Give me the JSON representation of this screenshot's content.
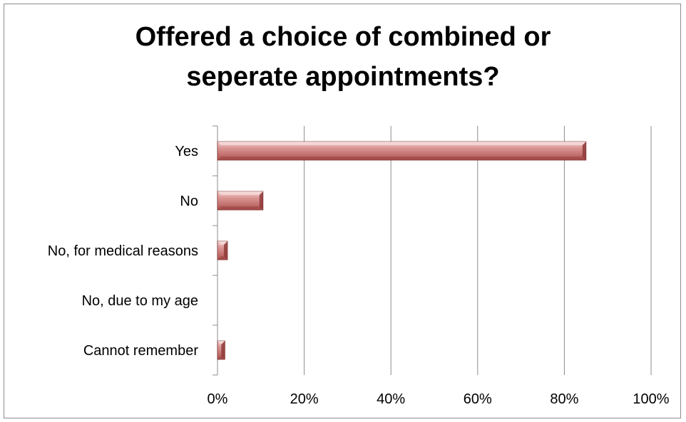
{
  "chart_data": {
    "type": "bar",
    "orientation": "horizontal",
    "title_lines": [
      "Offered a choice of combined or",
      "seperate appointments?"
    ],
    "categories": [
      "Yes",
      "No",
      "No, for medical reasons",
      "No, due to my age",
      "Cannot remember"
    ],
    "values": [
      0.85,
      0.105,
      0.023,
      0,
      0.017
    ],
    "xlim": [
      0,
      1
    ],
    "xticks": [
      0,
      0.2,
      0.4,
      0.6,
      0.8,
      1.0
    ],
    "xtick_labels": [
      "0%",
      "20%",
      "40%",
      "60%",
      "80%",
      "100%"
    ],
    "grid": true,
    "legend": "none",
    "bar_color": "#c0504d"
  }
}
